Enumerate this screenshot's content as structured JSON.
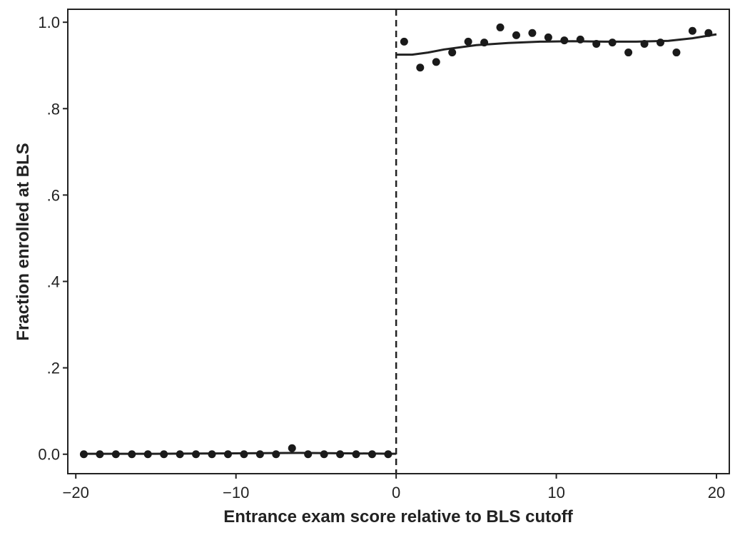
{
  "chart_data": {
    "type": "scatter",
    "xlabel": "Entrance exam score relative to BLS cutoff",
    "ylabel": "Fraction enrolled at BLS",
    "xlim": [
      -20.5,
      20.8
    ],
    "ylim": [
      -0.045,
      1.03
    ],
    "x_ticks": [
      {
        "value": -20,
        "label": "−20"
      },
      {
        "value": -10,
        "label": "−10"
      },
      {
        "value": 0,
        "label": "0"
      },
      {
        "value": 10,
        "label": "10"
      },
      {
        "value": 20,
        "label": "20"
      }
    ],
    "y_ticks": [
      {
        "value": 0.0,
        "label": "0.0"
      },
      {
        "value": 0.2,
        "label": ".2"
      },
      {
        "value": 0.4,
        "label": ".4"
      },
      {
        "value": 0.6,
        "label": ".6"
      },
      {
        "value": 0.8,
        "label": ".8"
      },
      {
        "value": 1.0,
        "label": "1.0"
      }
    ],
    "cutoff_x": 0,
    "grid": false,
    "points": [
      {
        "x": -19.5,
        "y": 0.0
      },
      {
        "x": -18.5,
        "y": 0.0
      },
      {
        "x": -17.5,
        "y": 0.0
      },
      {
        "x": -16.5,
        "y": 0.0
      },
      {
        "x": -15.5,
        "y": 0.0
      },
      {
        "x": -14.5,
        "y": 0.0
      },
      {
        "x": -13.5,
        "y": 0.0
      },
      {
        "x": -12.5,
        "y": 0.0
      },
      {
        "x": -11.5,
        "y": 0.0
      },
      {
        "x": -10.5,
        "y": 0.0
      },
      {
        "x": -9.5,
        "y": 0.0
      },
      {
        "x": -8.5,
        "y": 0.0
      },
      {
        "x": -7.5,
        "y": 0.0
      },
      {
        "x": -6.5,
        "y": 0.014
      },
      {
        "x": -5.5,
        "y": 0.0
      },
      {
        "x": -4.5,
        "y": 0.0
      },
      {
        "x": -3.5,
        "y": 0.0
      },
      {
        "x": -2.5,
        "y": 0.0
      },
      {
        "x": -1.5,
        "y": 0.0
      },
      {
        "x": -0.5,
        "y": 0.0
      },
      {
        "x": 0.5,
        "y": 0.955
      },
      {
        "x": 1.5,
        "y": 0.895
      },
      {
        "x": 2.5,
        "y": 0.908
      },
      {
        "x": 3.5,
        "y": 0.93
      },
      {
        "x": 4.5,
        "y": 0.955
      },
      {
        "x": 5.5,
        "y": 0.953
      },
      {
        "x": 6.5,
        "y": 0.988
      },
      {
        "x": 7.5,
        "y": 0.97
      },
      {
        "x": 8.5,
        "y": 0.975
      },
      {
        "x": 9.5,
        "y": 0.965
      },
      {
        "x": 10.5,
        "y": 0.958
      },
      {
        "x": 11.5,
        "y": 0.96
      },
      {
        "x": 12.5,
        "y": 0.95
      },
      {
        "x": 13.5,
        "y": 0.953
      },
      {
        "x": 14.5,
        "y": 0.93
      },
      {
        "x": 15.5,
        "y": 0.95
      },
      {
        "x": 16.5,
        "y": 0.953
      },
      {
        "x": 17.5,
        "y": 0.93
      },
      {
        "x": 18.5,
        "y": 0.98
      },
      {
        "x": 19.5,
        "y": 0.975
      }
    ],
    "fit_left": [
      {
        "x": -19.5,
        "y": 0.001
      },
      {
        "x": -15,
        "y": 0.001
      },
      {
        "x": -10,
        "y": 0.002
      },
      {
        "x": -6,
        "y": 0.003
      },
      {
        "x": -3,
        "y": 0.002
      },
      {
        "x": 0,
        "y": 0.001
      }
    ],
    "fit_right": [
      {
        "x": 0,
        "y": 0.925
      },
      {
        "x": 1,
        "y": 0.925
      },
      {
        "x": 2,
        "y": 0.93
      },
      {
        "x": 3,
        "y": 0.937
      },
      {
        "x": 5,
        "y": 0.947
      },
      {
        "x": 7,
        "y": 0.952
      },
      {
        "x": 9,
        "y": 0.955
      },
      {
        "x": 11,
        "y": 0.956
      },
      {
        "x": 13,
        "y": 0.955
      },
      {
        "x": 15,
        "y": 0.955
      },
      {
        "x": 17,
        "y": 0.957
      },
      {
        "x": 18.5,
        "y": 0.963
      },
      {
        "x": 20,
        "y": 0.972
      }
    ]
  }
}
